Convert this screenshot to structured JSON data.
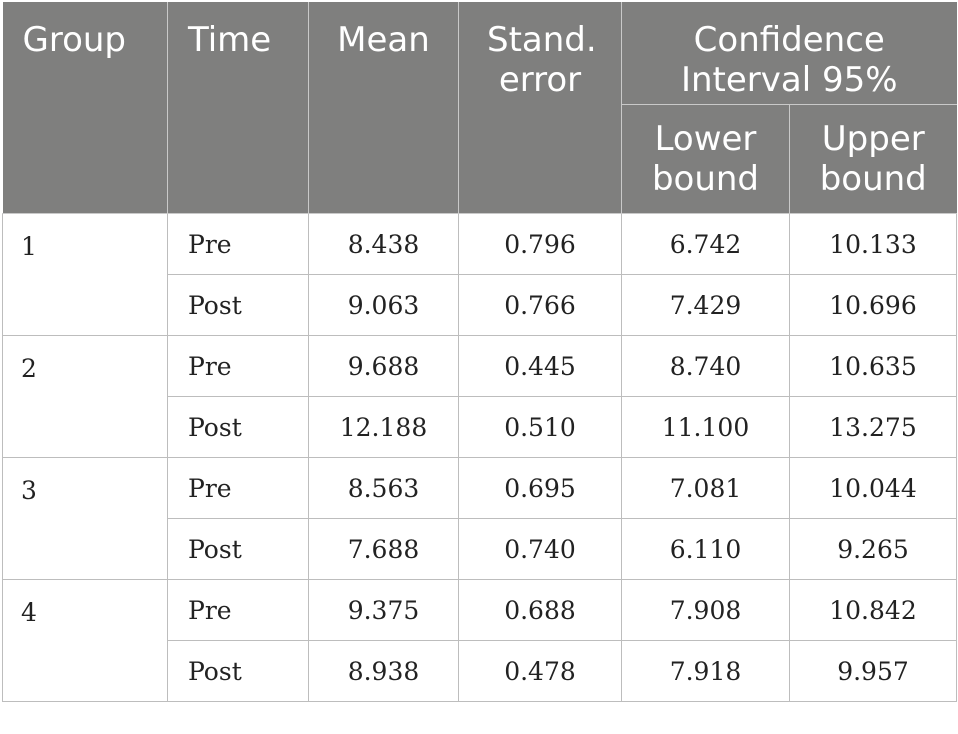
{
  "table": {
    "headers": {
      "group": "Group",
      "time": "Time",
      "mean": "Mean",
      "se": "Stand. error",
      "ci": "Confidence Interval 95%",
      "lower": "Lower bound",
      "upper": "Upper bound"
    },
    "rows": [
      {
        "group": "1",
        "time": "Pre",
        "mean": "8.438",
        "se": "0.796",
        "lower": "6.742",
        "upper": "10.133"
      },
      {
        "group": "",
        "time": "Post",
        "mean": "9.063",
        "se": "0.766",
        "lower": "7.429",
        "upper": "10.696"
      },
      {
        "group": "2",
        "time": "Pre",
        "mean": "9.688",
        "se": "0.445",
        "lower": "8.740",
        "upper": "10.635"
      },
      {
        "group": "",
        "time": "Post",
        "mean": "12.188",
        "se": "0.510",
        "lower": "11.100",
        "upper": "13.275"
      },
      {
        "group": "3",
        "time": "Pre",
        "mean": "8.563",
        "se": "0.695",
        "lower": "7.081",
        "upper": "10.044"
      },
      {
        "group": "",
        "time": "Post",
        "mean": "7.688",
        "se": "0.740",
        "lower": "6.110",
        "upper": "9.265"
      },
      {
        "group": "4",
        "time": "Pre",
        "mean": "9.375",
        "se": "0.688",
        "lower": "7.908",
        "upper": "10.842"
      },
      {
        "group": "",
        "time": "Post",
        "mean": "8.938",
        "se": "0.478",
        "lower": "7.918",
        "upper": "9.957"
      }
    ]
  },
  "colors": {
    "header_bg": "#7f7f7e",
    "header_text": "#ffffff",
    "grid": "#bdbdbd"
  }
}
